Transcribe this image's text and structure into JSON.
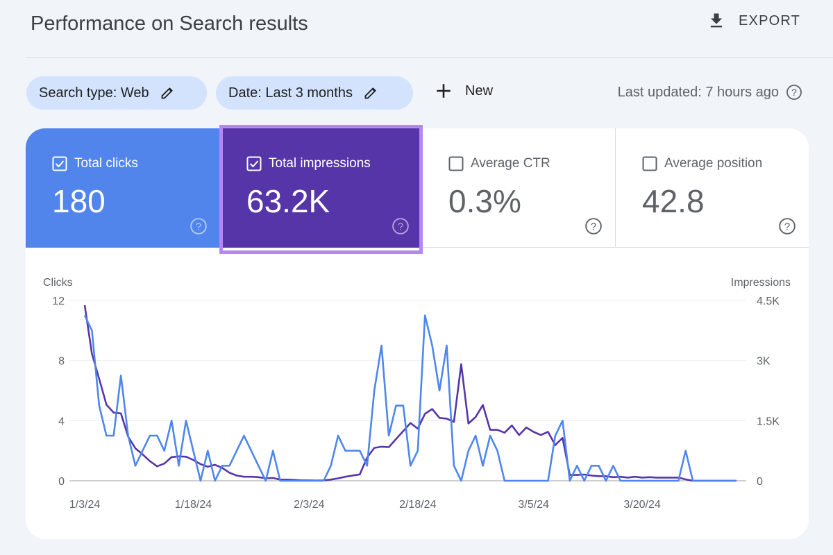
{
  "header": {
    "title": "Performance on Search results",
    "export_label": "EXPORT",
    "export_icon": "download-icon"
  },
  "filters": {
    "search_type": "Search type: Web",
    "date": "Date: Last 3 months",
    "new_label": "New",
    "last_updated": "Last updated: 7 hours ago"
  },
  "metrics": [
    {
      "label": "Total clicks",
      "value": "180",
      "checked": true,
      "color": "#5185ec"
    },
    {
      "label": "Total impressions",
      "value": "63.2K",
      "checked": true,
      "color": "#5635a9"
    },
    {
      "label": "Average CTR",
      "value": "0.3%",
      "checked": false
    },
    {
      "label": "Average position",
      "value": "42.8",
      "checked": false
    }
  ],
  "chart_data": {
    "type": "line",
    "ylabel_left": "Clicks",
    "ylabel_right": "Impressions",
    "x_start": "2024-01-03",
    "x_ticks": [
      "1/3/24",
      "1/18/24",
      "2/3/24",
      "2/18/24",
      "3/5/24",
      "3/20/24"
    ],
    "y_left_ticks": [
      "0",
      "4",
      "8",
      "12"
    ],
    "y_right_ticks": [
      "0",
      "1.5K",
      "3K",
      "4.5K"
    ],
    "y_left_range": [
      0,
      12
    ],
    "y_right_range": [
      0,
      4500
    ],
    "grid": true,
    "series": [
      {
        "axis": "left",
        "color": "#4f86ec",
        "values": [
          11,
          10,
          5,
          3,
          3,
          7,
          3,
          1,
          2,
          3,
          3,
          2,
          4,
          1,
          4,
          2,
          0,
          2,
          0,
          1,
          1,
          2,
          3,
          2,
          1,
          0,
          2,
          0,
          0,
          0,
          0,
          0,
          0,
          0,
          1,
          3,
          2,
          2,
          2,
          1,
          6,
          9,
          3,
          5,
          5,
          1,
          2,
          11,
          9,
          6,
          9,
          1,
          0,
          2,
          3,
          1,
          3,
          2,
          0,
          0,
          0,
          0,
          0,
          0,
          0,
          3,
          4,
          0,
          1,
          0,
          1,
          1,
          0,
          1,
          0,
          0,
          0,
          0,
          0,
          0,
          0,
          0,
          0,
          2,
          0,
          0,
          0,
          0,
          0,
          0,
          0
        ]
      },
      {
        "axis": "right",
        "color": "#5635a9",
        "values": [
          4380,
          3170,
          2540,
          1900,
          1700,
          1680,
          1100,
          810,
          660,
          490,
          360,
          430,
          590,
          610,
          600,
          520,
          415,
          350,
          400,
          320,
          200,
          130,
          100,
          100,
          90,
          60,
          70,
          30,
          30,
          20,
          10,
          10,
          5,
          10,
          30,
          60,
          100,
          130,
          160,
          580,
          820,
          850,
          840,
          1040,
          1240,
          1440,
          1300,
          1670,
          1790,
          1570,
          1550,
          1470,
          2910,
          1430,
          1590,
          1890,
          1270,
          1270,
          1200,
          1380,
          1140,
          1330,
          1220,
          1140,
          1220,
          890,
          1070,
          145,
          145,
          155,
          130,
          115,
          115,
          90,
          100,
          80,
          100,
          80,
          90,
          80,
          80,
          80,
          80,
          35,
          0,
          0,
          0,
          0,
          0,
          0,
          0
        ]
      }
    ]
  }
}
